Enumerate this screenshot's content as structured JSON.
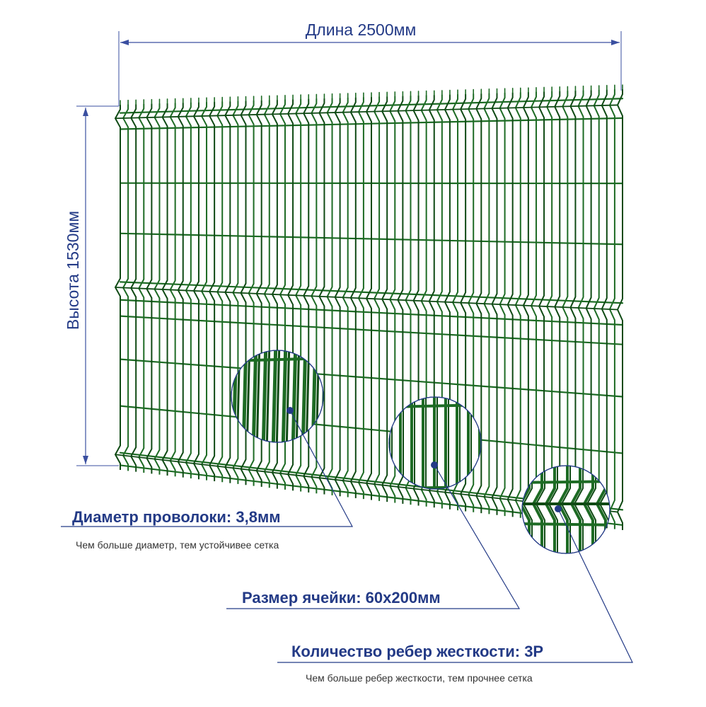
{
  "dimensions": {
    "length_label": "Длина 2500мм",
    "height_label": "Высота 1530мм"
  },
  "callouts": {
    "wire": {
      "title": "Диаметр проволоки: 3,8мм",
      "note": "Чем больше диаметр, тем устойчивее сетка"
    },
    "cell": {
      "title": "Размер ячейки: 60х200мм"
    },
    "ribs": {
      "title": "Количество ребер жесткости: 3Р",
      "note": "Чем больше ребер жесткости, тем прочнее сетка"
    }
  },
  "colors": {
    "wire": "#1d6b24",
    "wire_dark": "#0f4a14",
    "annotation": "#233a86",
    "dimension_line": "#3a4fa0"
  }
}
